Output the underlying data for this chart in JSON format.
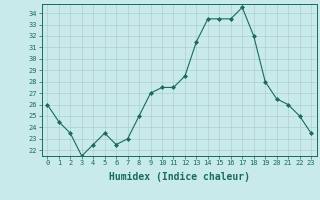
{
  "x": [
    0,
    1,
    2,
    3,
    4,
    5,
    6,
    7,
    8,
    9,
    10,
    11,
    12,
    13,
    14,
    15,
    16,
    17,
    18,
    19,
    20,
    21,
    22,
    23
  ],
  "y": [
    26.0,
    24.5,
    23.5,
    21.5,
    22.5,
    23.5,
    22.5,
    23.0,
    25.0,
    27.0,
    27.5,
    27.5,
    28.5,
    31.5,
    33.5,
    33.5,
    33.5,
    34.5,
    32.0,
    28.0,
    26.5,
    26.0,
    25.0,
    23.5
  ],
  "line_color": "#1a6b5a",
  "marker": "D",
  "marker_size": 2.0,
  "bg_color": "#c8eaea",
  "grid_major_color": "#b0d0d0",
  "grid_minor_color": "#c0e0e0",
  "xlabel": "Humidex (Indice chaleur)",
  "ylabel_ticks": [
    22,
    23,
    24,
    25,
    26,
    27,
    28,
    29,
    30,
    31,
    32,
    33,
    34
  ],
  "ylim": [
    21.5,
    34.8
  ],
  "xlim": [
    -0.5,
    23.5
  ],
  "tick_color": "#1a6b5a",
  "label_color": "#1a6b5a",
  "xlabel_fontsize": 7.0,
  "tick_fontsize": 5.0
}
